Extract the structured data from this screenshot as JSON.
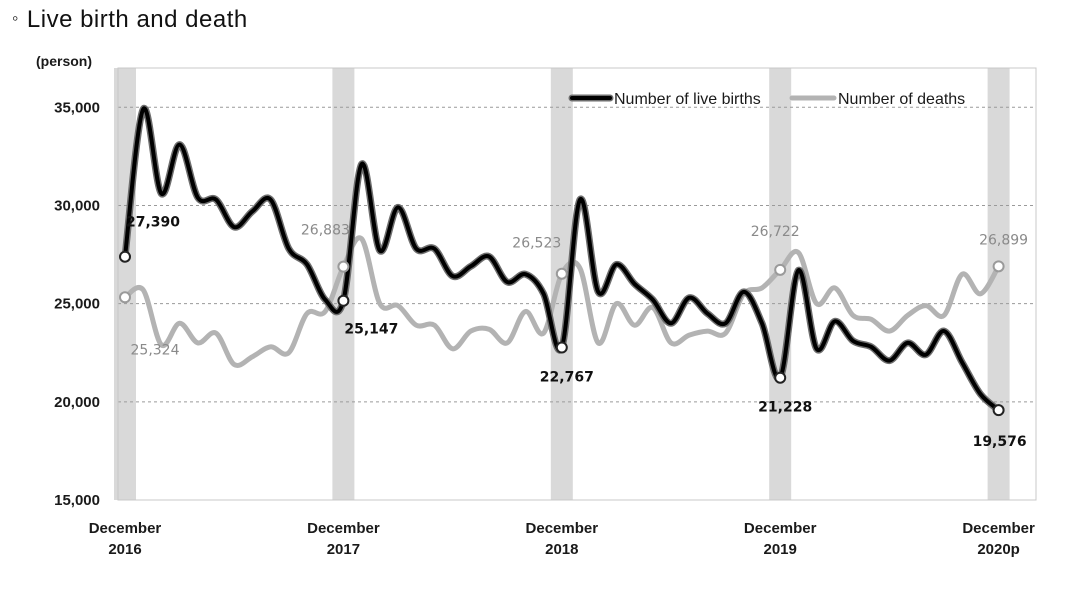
{
  "heading": {
    "bullet": "◦",
    "text": "Live birth and death"
  },
  "colors": {
    "births": "#000000",
    "deaths": "#b3b3b3",
    "december_band": "#d9d9d9"
  },
  "chart_data": {
    "type": "line",
    "unit_label": "(person)",
    "ylim": [
      15000,
      37000
    ],
    "y_ticks": [
      "15,000",
      "20,000",
      "25,000",
      "30,000",
      "35,000"
    ],
    "y_tick_values": [
      15000,
      20000,
      25000,
      30000,
      35000
    ],
    "grid": "horizontal dashed",
    "legend_position": "top-right",
    "x_tick_labels": [
      {
        "line1": "December",
        "line2": "2016"
      },
      {
        "line1": "December",
        "line2": "2017"
      },
      {
        "line1": "December",
        "line2": "2018"
      },
      {
        "line1": "December",
        "line2": "2019"
      },
      {
        "line1": "December",
        "line2": "2020p"
      }
    ],
    "x_tick_index": [
      0,
      12,
      24,
      36,
      48
    ],
    "x": [
      "2016-12",
      "2017-01",
      "2017-02",
      "2017-03",
      "2017-04",
      "2017-05",
      "2017-06",
      "2017-07",
      "2017-08",
      "2017-09",
      "2017-10",
      "2017-11",
      "2017-12",
      "2018-01",
      "2018-02",
      "2018-03",
      "2018-04",
      "2018-05",
      "2018-06",
      "2018-07",
      "2018-08",
      "2018-09",
      "2018-10",
      "2018-11",
      "2018-12",
      "2019-01",
      "2019-02",
      "2019-03",
      "2019-04",
      "2019-05",
      "2019-06",
      "2019-07",
      "2019-08",
      "2019-09",
      "2019-10",
      "2019-11",
      "2019-12",
      "2020-01",
      "2020-02",
      "2020-03",
      "2020-04",
      "2020-05",
      "2020-06",
      "2020-07",
      "2020-08",
      "2020-09",
      "2020-10",
      "2020-11",
      "2020-12"
    ],
    "series": [
      {
        "name": "Number of live births",
        "color": "#000000",
        "values": [
          27390,
          34900,
          30600,
          33100,
          30400,
          30300,
          28900,
          29700,
          30300,
          27800,
          27000,
          25200,
          25147,
          32100,
          27700,
          29900,
          27800,
          27800,
          26400,
          26900,
          27400,
          26100,
          26500,
          25500,
          22767,
          30300,
          25600,
          27000,
          26000,
          25200,
          24000,
          25300,
          24500,
          24000,
          25600,
          24000,
          21228,
          26700,
          22700,
          24100,
          23100,
          22800,
          22100,
          23000,
          22400,
          23600,
          22000,
          20400,
          19576
        ]
      },
      {
        "name": "Number of deaths",
        "color": "#b3b3b3",
        "values": [
          25324,
          25700,
          22900,
          24000,
          23000,
          23500,
          21900,
          22300,
          22800,
          22500,
          24500,
          24600,
          26883,
          28300,
          25000,
          24900,
          23900,
          23900,
          22700,
          23600,
          23700,
          23000,
          24600,
          23500,
          26523,
          26800,
          23000,
          25000,
          23900,
          24800,
          23000,
          23400,
          23600,
          23500,
          25500,
          25800,
          26722,
          27600,
          25000,
          25800,
          24400,
          24200,
          23600,
          24400,
          24900,
          24400,
          26500,
          25500,
          26899
        ]
      }
    ],
    "annotations": [
      {
        "series": 0,
        "index": 0,
        "text": "27,390"
      },
      {
        "series": 0,
        "index": 12,
        "text": "25,147"
      },
      {
        "series": 0,
        "index": 24,
        "text": "22,767"
      },
      {
        "series": 0,
        "index": 36,
        "text": "21,228"
      },
      {
        "series": 0,
        "index": 48,
        "text": "19,576"
      },
      {
        "series": 1,
        "index": 0,
        "text": "25,324"
      },
      {
        "series": 1,
        "index": 12,
        "text": "26,883"
      },
      {
        "series": 1,
        "index": 24,
        "text": "26,523"
      },
      {
        "series": 1,
        "index": 36,
        "text": "26,722"
      },
      {
        "series": 1,
        "index": 48,
        "text": "26,899"
      }
    ]
  }
}
